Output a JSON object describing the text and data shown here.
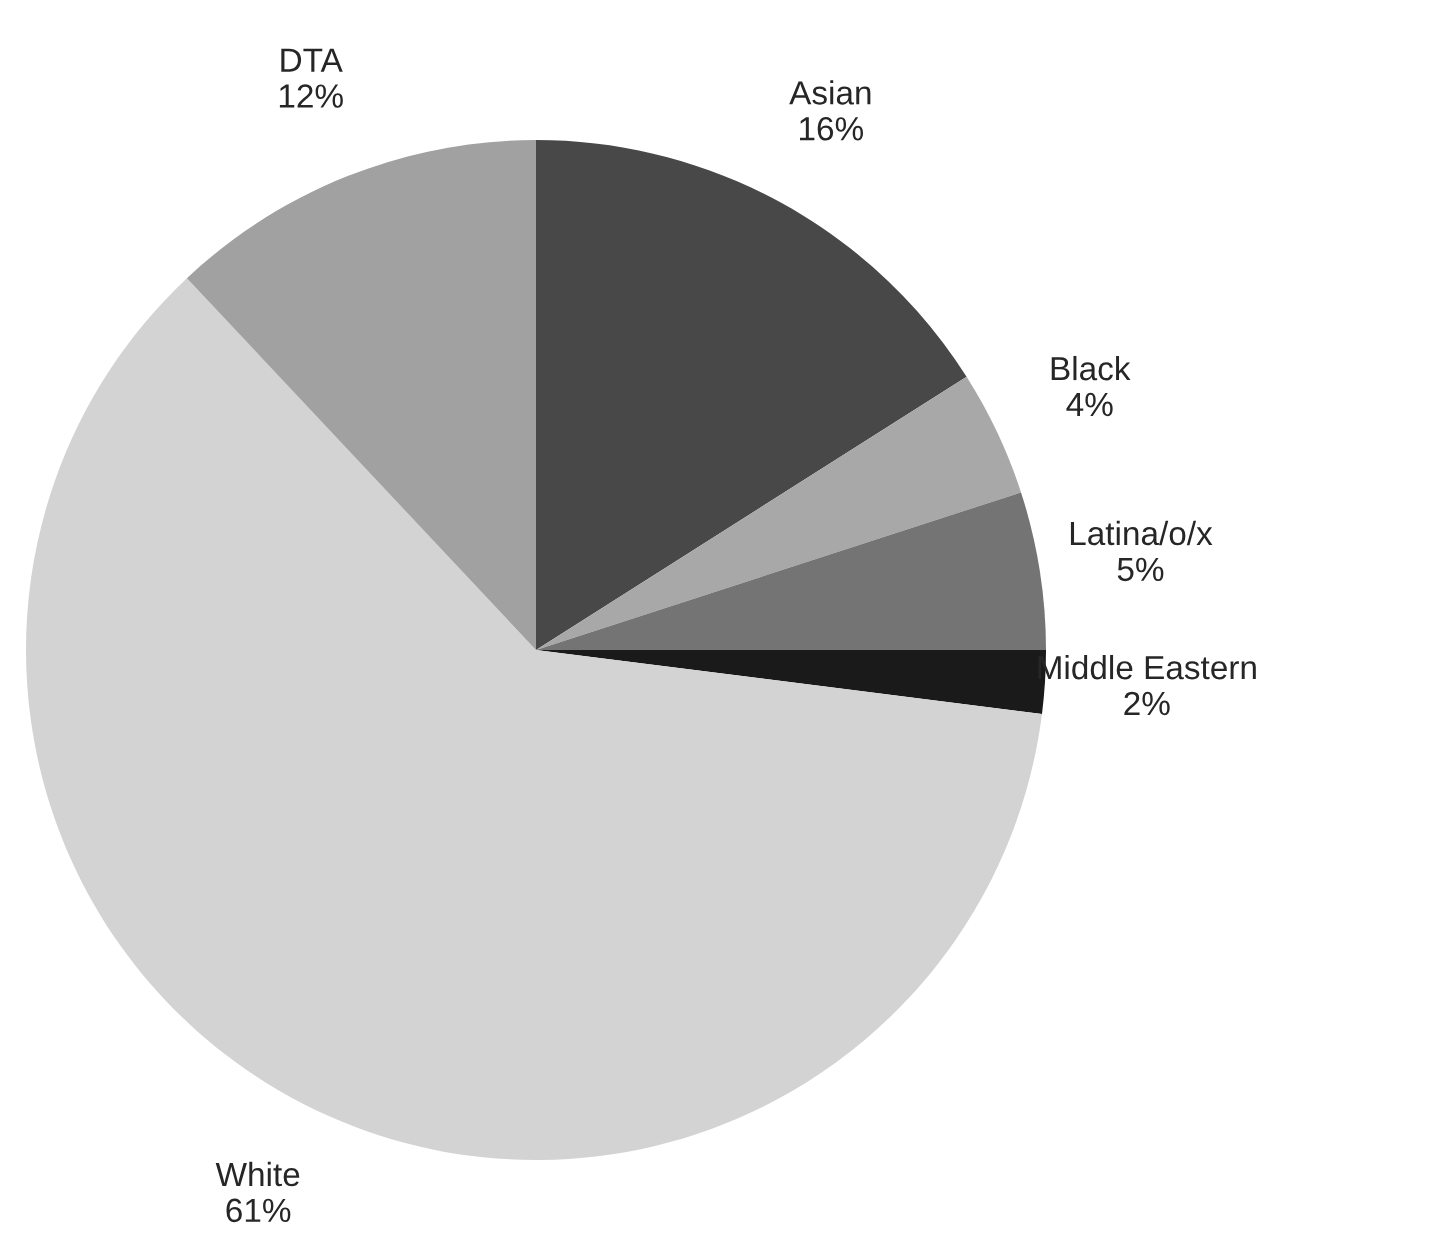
{
  "chart_data": {
    "type": "pie",
    "categories": [
      "Asian",
      "Black",
      "Latina/o/x",
      "Middle Eastern",
      "White",
      "DTA"
    ],
    "values": [
      16,
      4,
      5,
      2,
      61,
      12
    ],
    "value_labels": [
      "16%",
      "4%",
      "5%",
      "2%",
      "61%",
      "12%"
    ],
    "colors": [
      "#484848",
      "#a8a8a8",
      "#747474",
      "#1a1a1a",
      "#d3d3d3",
      "#a1a1a1"
    ]
  }
}
